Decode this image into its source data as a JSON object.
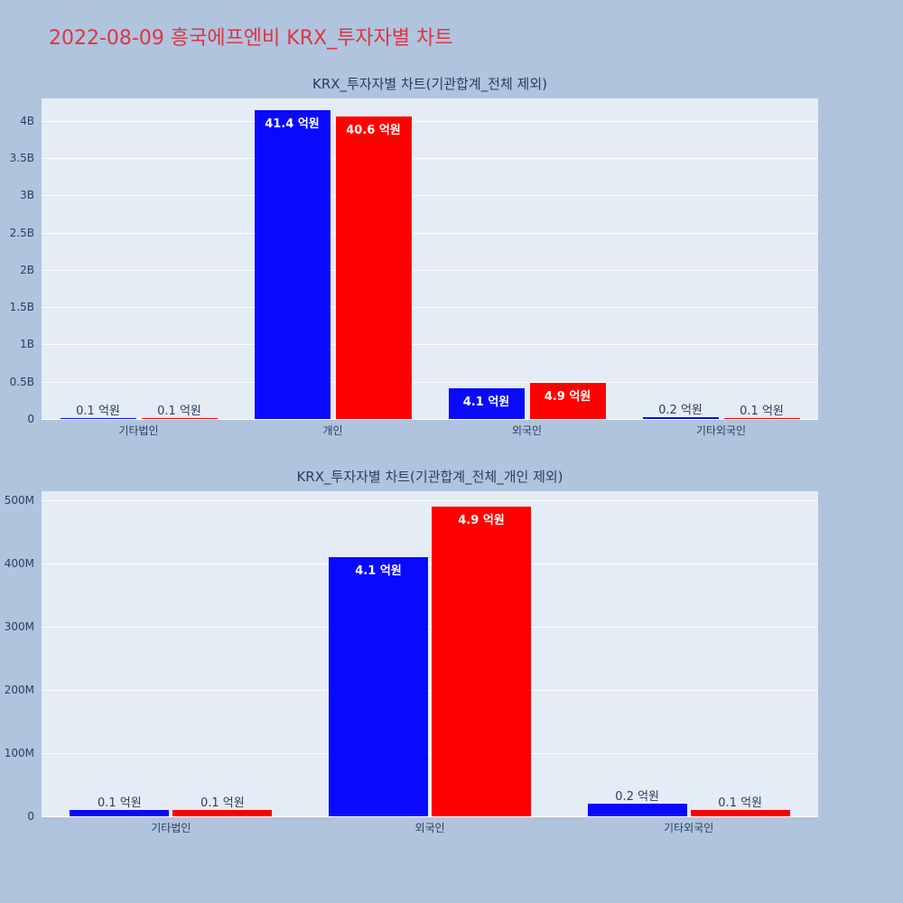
{
  "page": {
    "title": "2022-08-09 흥국에프엔비 KRX_투자자별 차트"
  },
  "colors": {
    "page_background": "#b0c4de",
    "page_title": "#dc3545",
    "plot_background": "#e5ecf6",
    "gridline": "#ffffff",
    "axis_text": "#2a3f5f",
    "bar_blue": "#0909ff",
    "bar_red": "#ff0000"
  },
  "chart_data": [
    {
      "type": "bar",
      "title": "KRX_투자자별 차트(기관합계_전체 제외)",
      "categories": [
        "기타법인",
        "개인",
        "외국인",
        "기타외국인"
      ],
      "series": [
        {
          "name": "series-blue",
          "color": "#0909ff",
          "values": [
            10000000,
            4140000000,
            410000000,
            20000000
          ],
          "labels": [
            "0.1 억원",
            "41.4 억원",
            "4.1 억원",
            "0.2 억원"
          ]
        },
        {
          "name": "series-red",
          "color": "#ff0000",
          "values": [
            10000000,
            4060000000,
            490000000,
            10000000
          ],
          "labels": [
            "0.1 억원",
            "40.6 억원",
            "4.9 억원",
            "0.1 억원"
          ]
        }
      ],
      "ylim": [
        0,
        4300000000
      ],
      "yticks": [
        {
          "value": 0,
          "label": "0"
        },
        {
          "value": 500000000,
          "label": "0.5B"
        },
        {
          "value": 1000000000,
          "label": "1B"
        },
        {
          "value": 1500000000,
          "label": "1.5B"
        },
        {
          "value": 2000000000,
          "label": "2B"
        },
        {
          "value": 2500000000,
          "label": "2.5B"
        },
        {
          "value": 3000000000,
          "label": "3B"
        },
        {
          "value": 3500000000,
          "label": "3.5B"
        },
        {
          "value": 4000000000,
          "label": "4B"
        }
      ],
      "grid": true,
      "legend_position": "none"
    },
    {
      "type": "bar",
      "title": "KRX_투자자별 차트(기관합계_전체_개인 제외)",
      "categories": [
        "기타법인",
        "외국인",
        "기타외국인"
      ],
      "series": [
        {
          "name": "series-blue",
          "color": "#0909ff",
          "values": [
            10000000,
            410000000,
            20000000
          ],
          "labels": [
            "0.1 억원",
            "4.1 억원",
            "0.2 억원"
          ]
        },
        {
          "name": "series-red",
          "color": "#ff0000",
          "values": [
            10000000,
            490000000,
            10000000
          ],
          "labels": [
            "0.1 억원",
            "4.9 억원",
            "0.1 억원"
          ]
        }
      ],
      "ylim": [
        0,
        515000000
      ],
      "yticks": [
        {
          "value": 0,
          "label": "0"
        },
        {
          "value": 100000000,
          "label": "100M"
        },
        {
          "value": 200000000,
          "label": "200M"
        },
        {
          "value": 300000000,
          "label": "300M"
        },
        {
          "value": 400000000,
          "label": "400M"
        },
        {
          "value": 500000000,
          "label": "500M"
        }
      ],
      "grid": true,
      "legend_position": "none"
    }
  ]
}
